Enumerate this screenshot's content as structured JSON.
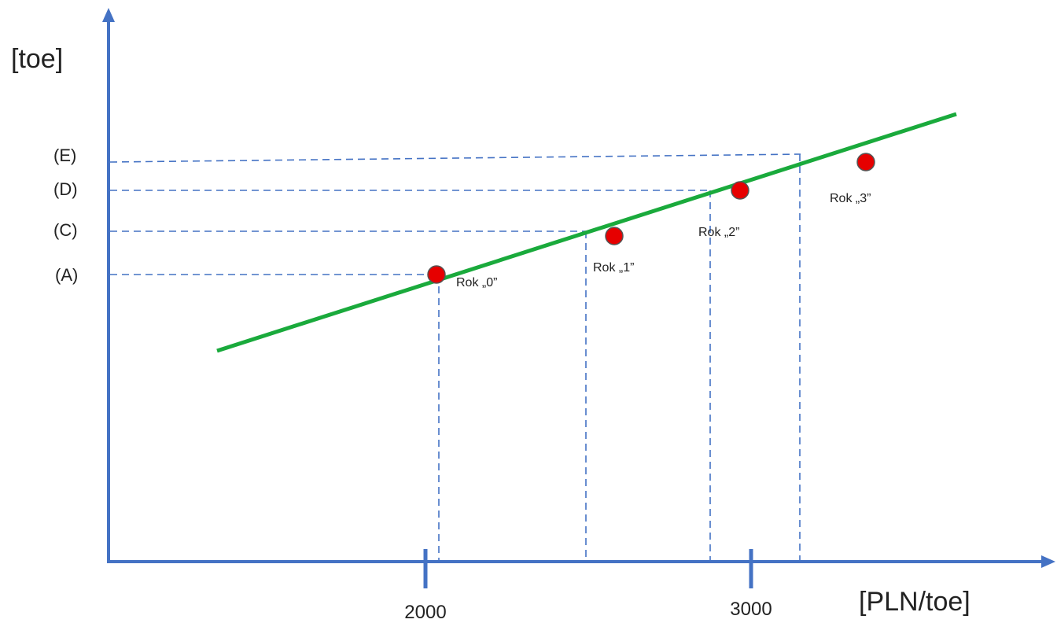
{
  "axes": {
    "y_title": "[toe]",
    "x_title": "[PLN/toe]",
    "x_ticks": [
      {
        "value": 2000,
        "label": "2000"
      },
      {
        "value": 3000,
        "label": "3000"
      }
    ]
  },
  "y_levels": [
    {
      "label": "(E)"
    },
    {
      "label": "(D)"
    },
    {
      "label": "(C)"
    },
    {
      "label": "(A)"
    }
  ],
  "points": [
    {
      "label": "Rok „0”"
    },
    {
      "label": "Rok „1”"
    },
    {
      "label": "Rok „2”"
    },
    {
      "label": "Rok „3”"
    }
  ],
  "colors": {
    "axis": "#4472c4",
    "dashed": "#4472c4",
    "trend_line": "#1aaa3c",
    "point_fill": "#e60000",
    "point_stroke": "#555555"
  }
}
